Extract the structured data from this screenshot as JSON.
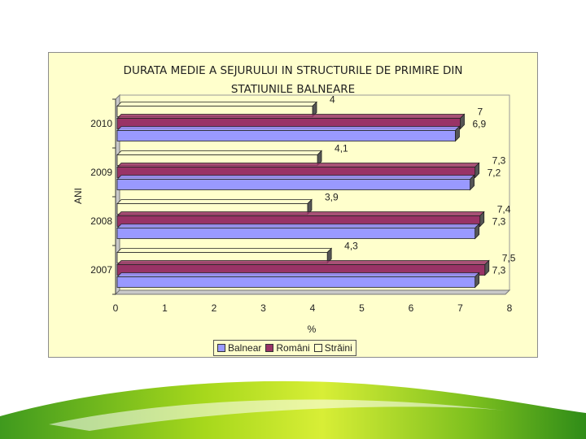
{
  "chart_data": {
    "type": "bar",
    "orientation": "horizontal",
    "title": "DURATA MEDIE A SEJURULUI IN STRUCTURILE DE PRIMIRE DIN\nSTATIUNILE BALNEARE",
    "xlabel": "%",
    "ylabel": "ANI",
    "xlim": [
      0,
      8
    ],
    "x_ticks": [
      "0",
      "1",
      "2",
      "3",
      "4",
      "5",
      "6",
      "7",
      "8"
    ],
    "categories": [
      "2010",
      "2009",
      "2008",
      "2007"
    ],
    "series": [
      {
        "name": "Străini",
        "color": "#ffffcc",
        "values": [
          4,
          4.1,
          3.9,
          4.3
        ],
        "labels": [
          "4",
          "4,1",
          "3,9",
          "4,3"
        ]
      },
      {
        "name": "Români",
        "color": "#993366",
        "values": [
          7,
          7.3,
          7.4,
          7.5
        ],
        "labels": [
          "7",
          "7,3",
          "7,4",
          "7,5"
        ]
      },
      {
        "name": "Balnear",
        "color": "#9999ff",
        "values": [
          6.9,
          7.2,
          7.3,
          7.3
        ],
        "labels": [
          "6,9",
          "7,2",
          "7,3",
          "7,3"
        ]
      }
    ],
    "legend": [
      "Balnear",
      "Români",
      "Străini"
    ],
    "legend_position": "bottom",
    "style": "3d"
  }
}
